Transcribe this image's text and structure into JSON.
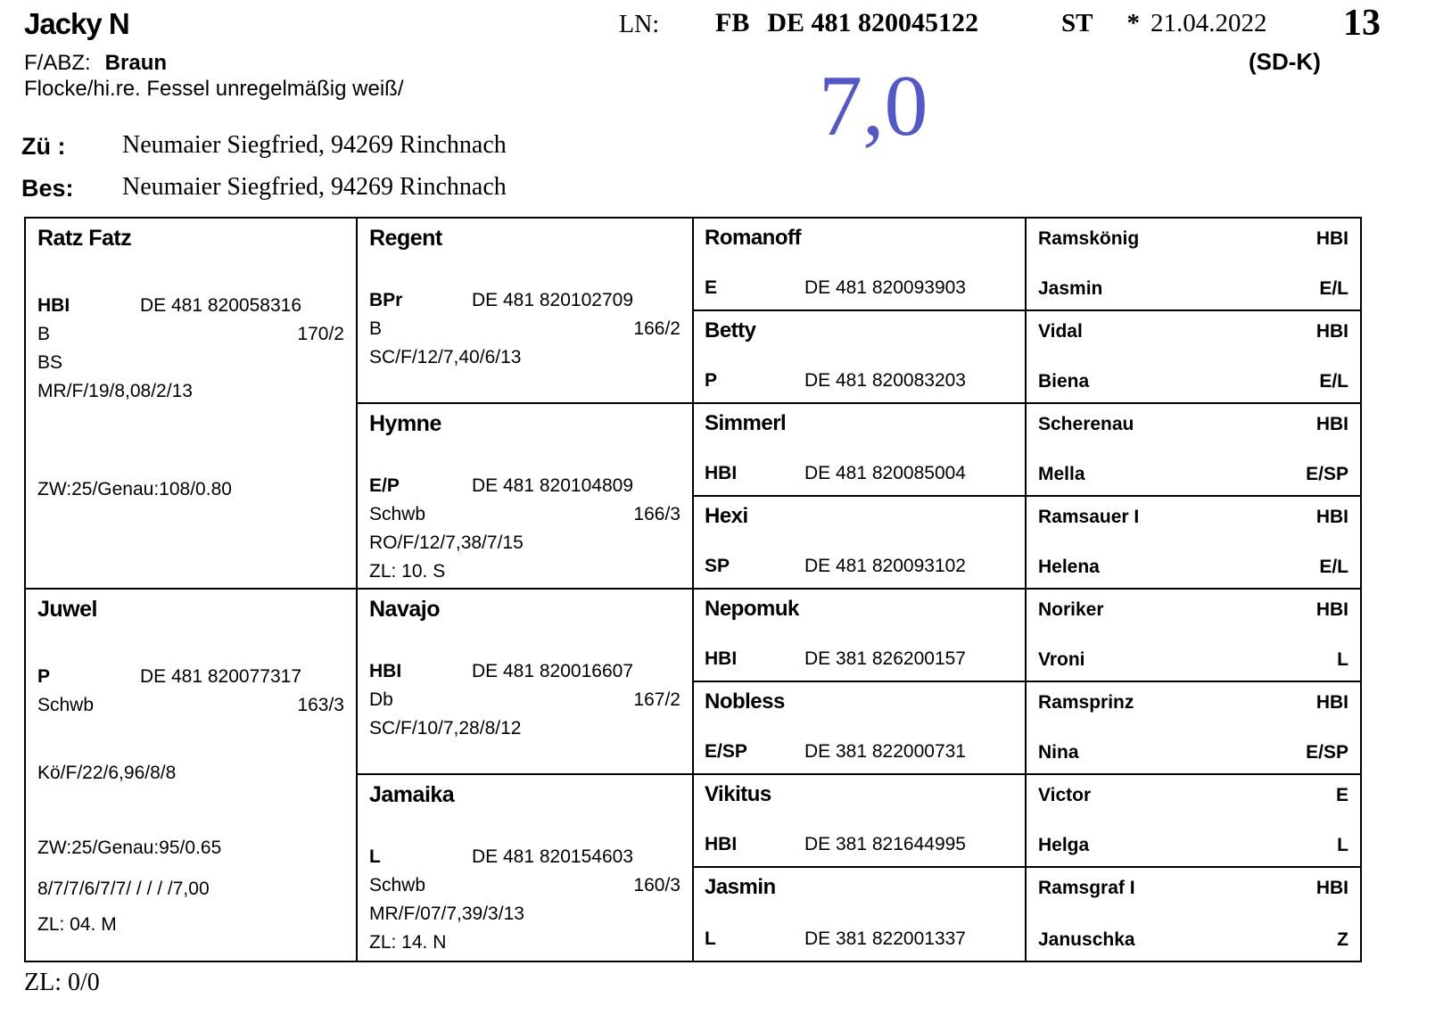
{
  "header": {
    "horse_name": "Jacky N",
    "fabz_label": "F/ABZ:",
    "fabz_value": "Braun",
    "markings": "Flocke/hi.re. Fessel unregelmäßig weiß/",
    "ln_label": "LN:",
    "book_label": "FB",
    "life_number": "DE 481 820045122",
    "st_label": "ST",
    "born_symbol": "*",
    "birth_date": "21.04.2022",
    "page_number": "13",
    "section_code": "(SD-K)",
    "score": "7,0",
    "score_color": "#5257cb",
    "breeder_label": "Zü :",
    "breeder": "Neumaier Siegfried, 94269 Rinchnach",
    "owner_label": "Bes:",
    "owner": "Neumaier Siegfried, 94269 Rinchnach"
  },
  "pedigree": {
    "gen1": [
      {
        "name": "Ratz Fatz",
        "label": "HBI",
        "id": "DE 481 820058316",
        "sub_label": "B",
        "sub_value": "170/2",
        "line3": "BS",
        "line4": "MR/F/19/8,08/2/13",
        "zw": "ZW:25/Genau:108/0.80"
      },
      {
        "name": "Juwel",
        "label": "P",
        "id": "DE 481 820077317",
        "sub_label": "Schwb",
        "sub_value": "163/3",
        "line3": "Kö/F/22/6,96/8/8",
        "zw": "ZW:25/Genau:95/0.65",
        "scores": "8/7/7/6/7/7/ / / / /7,00",
        "zl": "ZL: 04. M"
      }
    ],
    "gen2": [
      {
        "name": "Regent",
        "label": "BPr",
        "id": "DE 481 820102709",
        "sub_label": "B",
        "sub_value": "166/2",
        "line3": "SC/F/12/7,40/6/13"
      },
      {
        "name": "Hymne",
        "label": "E/P",
        "id": "DE 481 820104809",
        "sub_label": "Schwb",
        "sub_value": "166/3",
        "line3": "RO/F/12/7,38/7/15",
        "zl": "ZL: 10. S"
      },
      {
        "name": "Navajo",
        "label": "HBI",
        "id": "DE 481 820016607",
        "sub_label": "Db",
        "sub_value": "167/2",
        "line3": "SC/F/10/7,28/8/12"
      },
      {
        "name": "Jamaika",
        "label": "L",
        "id": "DE 481 820154603",
        "sub_label": "Schwb",
        "sub_value": "160/3",
        "line3": "MR/F/07/7,39/3/13",
        "zl": "ZL: 14. N"
      }
    ],
    "gen3": [
      {
        "name": "Romanoff",
        "label": "E",
        "id": "DE 481 820093903"
      },
      {
        "name": "Betty",
        "label": "P",
        "id": "DE 481 820083203"
      },
      {
        "name": "Simmerl",
        "label": "HBI",
        "id": "DE 481 820085004"
      },
      {
        "name": "Hexi",
        "label": "SP",
        "id": "DE 481 820093102"
      },
      {
        "name": "Nepomuk",
        "label": "HBI",
        "id": "DE 381 826200157"
      },
      {
        "name": "Nobless",
        "label": "E/SP",
        "id": "DE 381 822000731"
      },
      {
        "name": "Vikitus",
        "label": "HBI",
        "id": "DE 381 821644995"
      },
      {
        "name": "Jasmin",
        "label": "L",
        "id": "DE 381 822001337"
      }
    ],
    "gen4": [
      {
        "sire": "Ramskönig",
        "sire_code": "HBI",
        "dam": "Jasmin",
        "dam_code": "E/L"
      },
      {
        "sire": "Vidal",
        "sire_code": "HBI",
        "dam": "Biena",
        "dam_code": "E/L"
      },
      {
        "sire": "Scherenau",
        "sire_code": "HBI",
        "dam": "Mella",
        "dam_code": "E/SP"
      },
      {
        "sire": "Ramsauer I",
        "sire_code": "HBI",
        "dam": "Helena",
        "dam_code": "E/L"
      },
      {
        "sire": "Noriker",
        "sire_code": "HBI",
        "dam": "Vroni",
        "dam_code": "L"
      },
      {
        "sire": "Ramsprinz",
        "sire_code": "HBI",
        "dam": "Nina",
        "dam_code": "E/SP"
      },
      {
        "sire": "Victor",
        "sire_code": "E",
        "dam": "Helga",
        "dam_code": "L"
      },
      {
        "sire": "Ramsgraf I",
        "sire_code": "HBI",
        "dam": "Januschka",
        "dam_code": "Z"
      }
    ]
  },
  "footer": {
    "zl_line": "ZL: 0/0"
  }
}
